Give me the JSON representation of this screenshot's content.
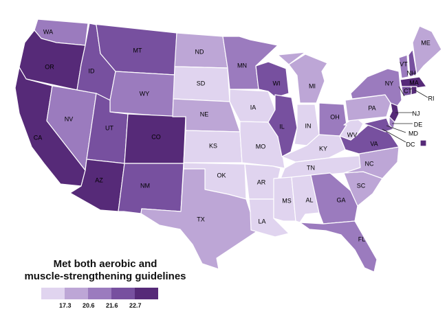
{
  "legend": {
    "title_line1": "Met both aerobic and",
    "title_line2": "muscle-strengthening guidelines",
    "thresholds": [
      "17.3",
      "20.6",
      "21.6",
      "22.7"
    ]
  },
  "colors": {
    "c1": "#e0d4ef",
    "c2": "#bda6d6",
    "c3": "#9b7bbe",
    "c4": "#77509f",
    "c5": "#562a78"
  },
  "states": [
    {
      "abbr": "WA",
      "class": 3
    },
    {
      "abbr": "OR",
      "class": 5
    },
    {
      "abbr": "CA",
      "class": 5
    },
    {
      "abbr": "NV",
      "class": 3
    },
    {
      "abbr": "ID",
      "class": 4
    },
    {
      "abbr": "MT",
      "class": 4
    },
    {
      "abbr": "WY",
      "class": 3
    },
    {
      "abbr": "UT",
      "class": 4
    },
    {
      "abbr": "AZ",
      "class": 5
    },
    {
      "abbr": "CO",
      "class": 5
    },
    {
      "abbr": "NM",
      "class": 4
    },
    {
      "abbr": "ND",
      "class": 2
    },
    {
      "abbr": "SD",
      "class": 1
    },
    {
      "abbr": "NE",
      "class": 2
    },
    {
      "abbr": "KS",
      "class": 1
    },
    {
      "abbr": "OK",
      "class": 1
    },
    {
      "abbr": "TX",
      "class": 2
    },
    {
      "abbr": "MN",
      "class": 3
    },
    {
      "abbr": "IA",
      "class": 1
    },
    {
      "abbr": "MO",
      "class": 1
    },
    {
      "abbr": "AR",
      "class": 1
    },
    {
      "abbr": "LA",
      "class": 1
    },
    {
      "abbr": "WI",
      "class": 4
    },
    {
      "abbr": "IL",
      "class": 4
    },
    {
      "abbr": "MI",
      "class": 2
    },
    {
      "abbr": "IN",
      "class": 1
    },
    {
      "abbr": "OH",
      "class": 3
    },
    {
      "abbr": "KY",
      "class": 1
    },
    {
      "abbr": "TN",
      "class": 1
    },
    {
      "abbr": "MS",
      "class": 1
    },
    {
      "abbr": "AL",
      "class": 1
    },
    {
      "abbr": "GA",
      "class": 3
    },
    {
      "abbr": "FL",
      "class": 3
    },
    {
      "abbr": "SC",
      "class": 2
    },
    {
      "abbr": "NC",
      "class": 2
    },
    {
      "abbr": "VA",
      "class": 4
    },
    {
      "abbr": "WV",
      "class": 1
    },
    {
      "abbr": "PA",
      "class": 2
    },
    {
      "abbr": "NY",
      "class": 3
    },
    {
      "abbr": "VT",
      "class": 3
    },
    {
      "abbr": "NH",
      "class": 4
    },
    {
      "abbr": "ME",
      "class": 2
    },
    {
      "abbr": "MA",
      "class": 5
    },
    {
      "abbr": "CT",
      "class": 4
    },
    {
      "abbr": "RI",
      "class": 5
    },
    {
      "abbr": "NJ",
      "class": 5
    },
    {
      "abbr": "DE",
      "class": 3
    },
    {
      "abbr": "MD",
      "class": 4
    },
    {
      "abbr": "DC",
      "class": 5
    }
  ]
}
